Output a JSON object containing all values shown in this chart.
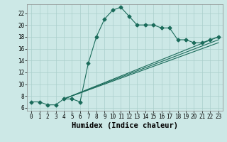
{
  "xlabel": "Humidex (Indice chaleur)",
  "bg_color": "#cce8e6",
  "grid_color": "#aacfcc",
  "line_color": "#1a6b5a",
  "spine_color": "#888888",
  "xlim": [
    -0.5,
    23.5
  ],
  "ylim": [
    5.5,
    23.5
  ],
  "xticks": [
    0,
    1,
    2,
    3,
    4,
    5,
    6,
    7,
    8,
    9,
    10,
    11,
    12,
    13,
    14,
    15,
    16,
    17,
    18,
    19,
    20,
    21,
    22,
    23
  ],
  "yticks": [
    6,
    8,
    10,
    12,
    14,
    16,
    18,
    20,
    22
  ],
  "curve1_x": [
    0,
    1,
    2,
    3,
    4,
    5,
    6,
    7,
    8,
    9,
    10,
    11,
    12,
    13,
    14,
    15,
    16,
    17,
    18,
    19,
    20,
    21,
    22,
    23
  ],
  "curve1_y": [
    7.0,
    7.0,
    6.5,
    6.5,
    7.5,
    7.5,
    7.0,
    13.5,
    18.0,
    21.0,
    22.5,
    23.0,
    21.5,
    20.0,
    20.0,
    20.0,
    19.5,
    19.5,
    17.5,
    17.5,
    17.0,
    17.0,
    17.5,
    18.0
  ],
  "line2_x": [
    4,
    23
  ],
  "line2_y": [
    7.5,
    18.0
  ],
  "line3_x": [
    4,
    23
  ],
  "line3_y": [
    7.5,
    17.5
  ],
  "line4_x": [
    4,
    23
  ],
  "line4_y": [
    7.5,
    17.0
  ],
  "tick_fontsize": 5.5,
  "xlabel_fontsize": 7.5,
  "marker_size": 2.5,
  "line_width": 0.8
}
